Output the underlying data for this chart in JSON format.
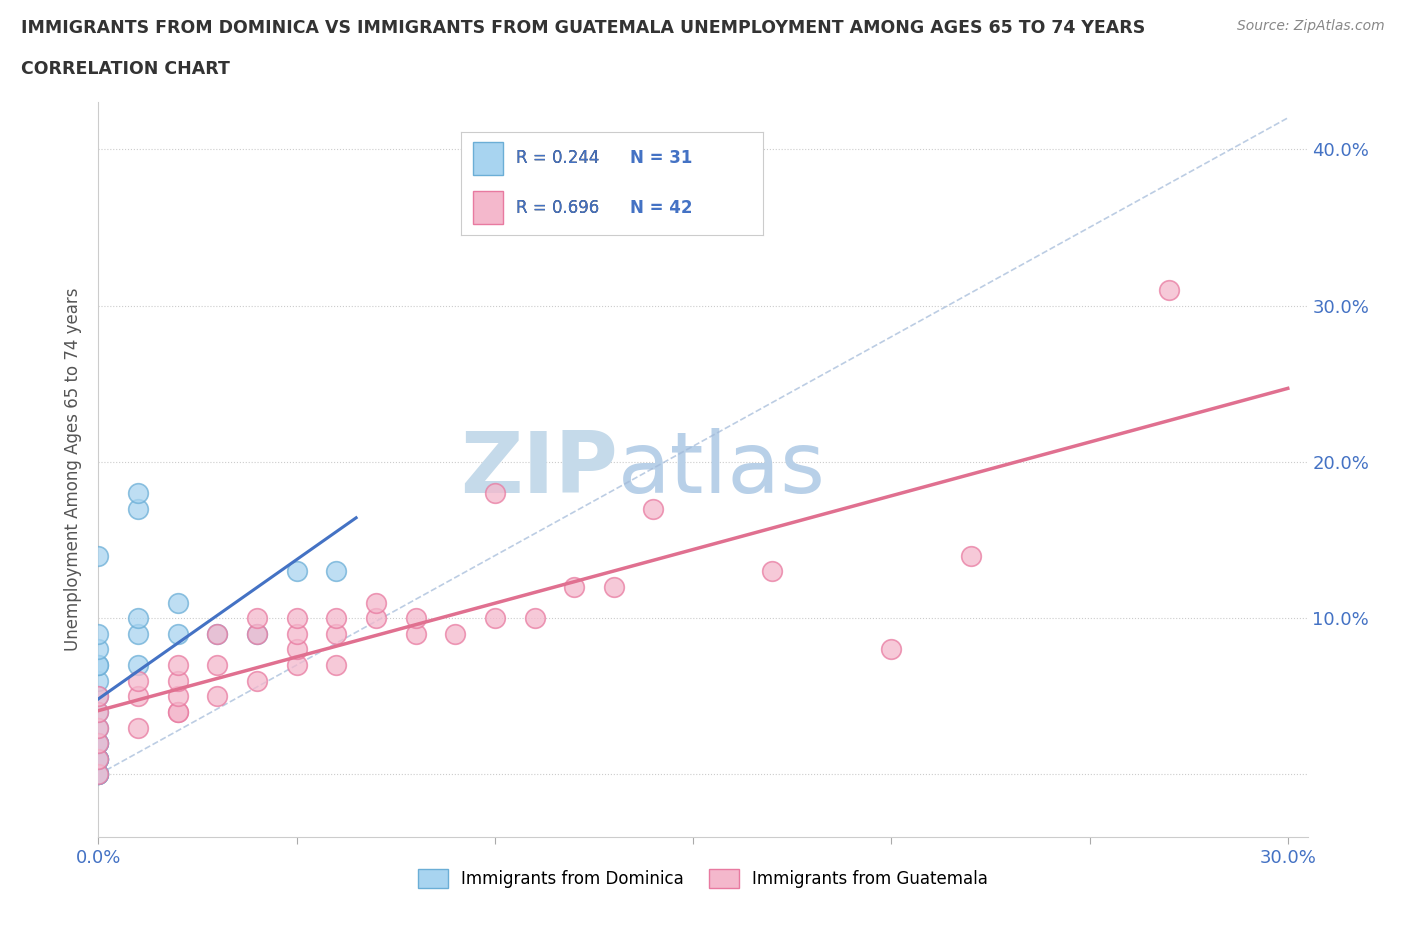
{
  "title_line1": "IMMIGRANTS FROM DOMINICA VS IMMIGRANTS FROM GUATEMALA UNEMPLOYMENT AMONG AGES 65 TO 74 YEARS",
  "title_line2": "CORRELATION CHART",
  "source": "Source: ZipAtlas.com",
  "ylabel": "Unemployment Among Ages 65 to 74 years",
  "xlim": [
    0.0,
    0.305
  ],
  "ylim": [
    -0.04,
    0.43
  ],
  "xticks": [
    0.0,
    0.05,
    0.1,
    0.15,
    0.2,
    0.25,
    0.3
  ],
  "yticks": [
    0.0,
    0.1,
    0.2,
    0.3,
    0.4
  ],
  "xticklabels_show": {
    "0.0": "0.0%",
    "0.30": "30.0%"
  },
  "yticklabels_show": {
    "0.10": "10.0%",
    "0.20": "20.0%",
    "0.30": "30.0%",
    "0.40": "40.0%"
  },
  "dominica_color": "#a8d4f0",
  "dominica_edge": "#6baed6",
  "dominica_line_color": "#4472C4",
  "dominica_R": 0.244,
  "dominica_N": 31,
  "guatemala_color": "#f4b8cc",
  "guatemala_edge": "#e87aa0",
  "guatemala_line_color": "#e07090",
  "guatemala_R": 0.696,
  "guatemala_N": 42,
  "legend_R_color": "#4472C4",
  "dominica_x": [
    0.0,
    0.0,
    0.0,
    0.0,
    0.0,
    0.0,
    0.0,
    0.0,
    0.0,
    0.0,
    0.0,
    0.0,
    0.0,
    0.0,
    0.0,
    0.0,
    0.0,
    0.0,
    0.0,
    0.0,
    0.01,
    0.01,
    0.01,
    0.01,
    0.01,
    0.02,
    0.02,
    0.03,
    0.04,
    0.05,
    0.06
  ],
  "dominica_y": [
    0.0,
    0.0,
    0.0,
    0.0,
    0.01,
    0.01,
    0.01,
    0.01,
    0.02,
    0.02,
    0.02,
    0.03,
    0.04,
    0.05,
    0.06,
    0.07,
    0.07,
    0.08,
    0.09,
    0.14,
    0.07,
    0.09,
    0.1,
    0.17,
    0.18,
    0.09,
    0.11,
    0.09,
    0.09,
    0.13,
    0.13
  ],
  "guatemala_x": [
    0.0,
    0.0,
    0.0,
    0.0,
    0.0,
    0.0,
    0.01,
    0.01,
    0.01,
    0.02,
    0.02,
    0.02,
    0.02,
    0.02,
    0.03,
    0.03,
    0.03,
    0.04,
    0.04,
    0.04,
    0.05,
    0.05,
    0.05,
    0.05,
    0.06,
    0.06,
    0.06,
    0.07,
    0.07,
    0.08,
    0.08,
    0.09,
    0.1,
    0.1,
    0.11,
    0.12,
    0.13,
    0.14,
    0.17,
    0.2,
    0.22,
    0.27
  ],
  "guatemala_y": [
    0.0,
    0.01,
    0.02,
    0.03,
    0.04,
    0.05,
    0.03,
    0.05,
    0.06,
    0.04,
    0.04,
    0.05,
    0.06,
    0.07,
    0.05,
    0.07,
    0.09,
    0.06,
    0.09,
    0.1,
    0.07,
    0.08,
    0.09,
    0.1,
    0.07,
    0.09,
    0.1,
    0.1,
    0.11,
    0.09,
    0.1,
    0.09,
    0.1,
    0.18,
    0.1,
    0.12,
    0.12,
    0.17,
    0.13,
    0.08,
    0.14,
    0.31
  ],
  "background_color": "#ffffff",
  "grid_color": "#cccccc",
  "title_color": "#333333",
  "axis_label_color": "#555555",
  "tick_label_color": "#4472C4",
  "watermark_zip_color": "#c8dff0",
  "watermark_atlas_color": "#b0cce0"
}
